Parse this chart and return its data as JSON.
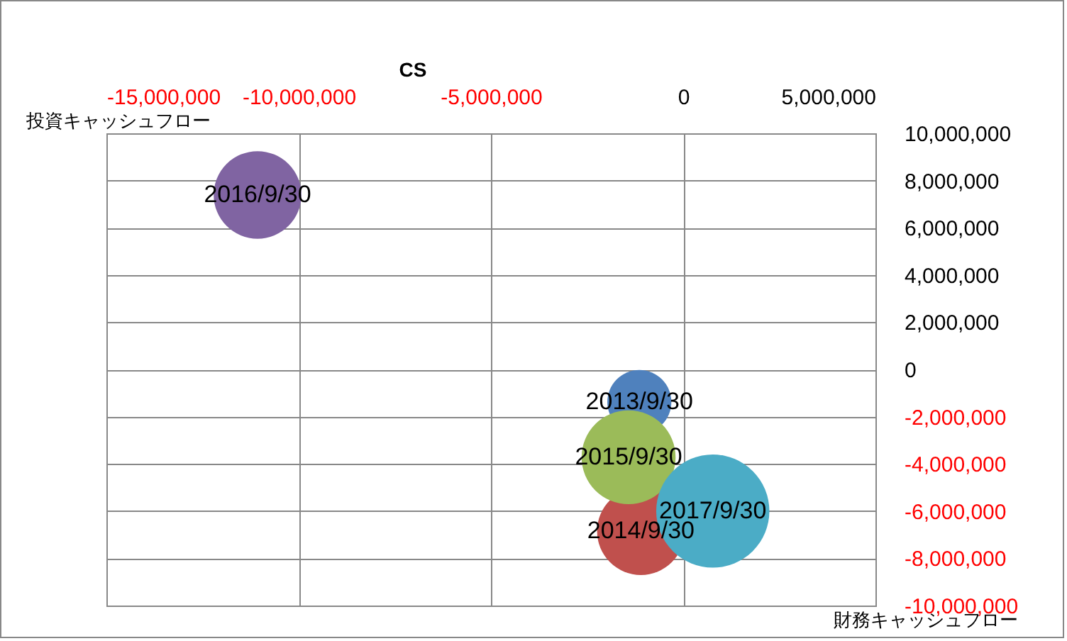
{
  "chart_data": {
    "type": "bubble",
    "title": "CS",
    "xlabel": "投資キャッシュフロー",
    "ylabel": "財務キャッシュフロー",
    "xlim": [
      -15000000,
      5000000
    ],
    "xticks": [
      {
        "value": -15000000,
        "label": "-15,000,000"
      },
      {
        "value": -10000000,
        "label": "-10,000,000"
      },
      {
        "value": -5000000,
        "label": "-5,000,000"
      },
      0,
      {
        "value": 5000000,
        "label": "5,000,000"
      }
    ],
    "ylim": [
      -10000000,
      10000000
    ],
    "yticks": [
      {
        "value": -10000000,
        "label": "-10,000,000"
      },
      {
        "value": -8000000,
        "label": "-8,000,000"
      },
      {
        "value": -6000000,
        "label": "-6,000,000"
      },
      {
        "value": -4000000,
        "label": "-4,000,000"
      },
      {
        "value": -2000000,
        "label": "-2,000,000"
      },
      0,
      {
        "value": 2000000,
        "label": "2,000,000"
      },
      {
        "value": 4000000,
        "label": "4,000,000"
      },
      {
        "value": 6000000,
        "label": "6,000,000"
      },
      {
        "value": 8000000,
        "label": "8,000,000"
      },
      {
        "value": 10000000,
        "label": "10,000,000"
      }
    ],
    "grid": true,
    "legend": false,
    "series": [
      {
        "name": "2013/9/30",
        "color": "#4f81bd",
        "x": [
          -1140000
        ],
        "values": [
          -1380000
        ],
        "sizes": [
          0.32
        ]
      },
      {
        "name": "2014/9/30",
        "color": "#c0504d",
        "x": [
          -1100000
        ],
        "values": [
          -6850000
        ],
        "sizes": [
          0.6
        ]
      },
      {
        "name": "2015/9/30",
        "color": "#9bbb59",
        "x": [
          -1420000
        ],
        "values": [
          -3720000
        ],
        "sizes": [
          0.69
        ]
      },
      {
        "name": "2016/9/30",
        "color": "#8064a2",
        "x": [
          -11070000
        ],
        "values": [
          7390000
        ],
        "sizes": [
          0.6
        ]
      },
      {
        "name": "2017/9/30",
        "color": "#4bacc6",
        "x": [
          770000
        ],
        "values": [
          -6000000
        ],
        "sizes": [
          1
        ]
      }
    ]
  }
}
